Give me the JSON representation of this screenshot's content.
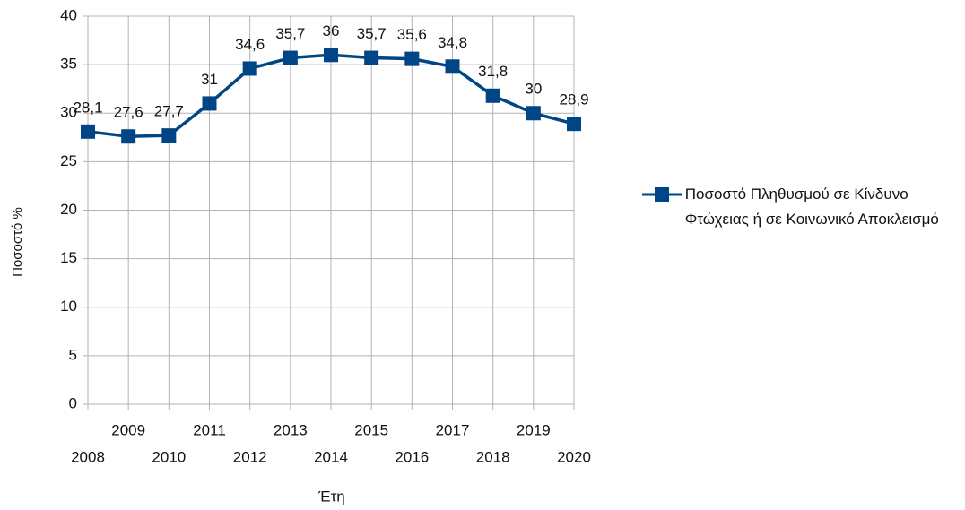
{
  "chart_data": {
    "type": "line",
    "x_label": "Έτη",
    "y_label": "Ποσοστό %",
    "categories": [
      "2008",
      "2009",
      "2010",
      "2011",
      "2012",
      "2013",
      "2014",
      "2015",
      "2016",
      "2017",
      "2018",
      "2019",
      "2020"
    ],
    "series": [
      {
        "name": "Ποσοστό Πληθυσμού σε Κίνδυνο Φτώχειας ή σε Κοινωνικό Αποκλεισμό",
        "color": "#004586",
        "values": [
          28.1,
          27.6,
          27.7,
          31,
          34.6,
          35.7,
          36,
          35.7,
          35.6,
          34.8,
          31.8,
          30,
          28.9
        ],
        "value_labels": [
          "28,1",
          "27,6",
          "27,7",
          "31",
          "34,6",
          "35,7",
          "36",
          "35,7",
          "35,6",
          "34,8",
          "31,8",
          "30",
          "28,9"
        ]
      }
    ],
    "ylim": [
      0,
      40
    ],
    "yticks": [
      0,
      5,
      10,
      15,
      20,
      25,
      30,
      35,
      40
    ],
    "grid": true,
    "legend": "right"
  }
}
